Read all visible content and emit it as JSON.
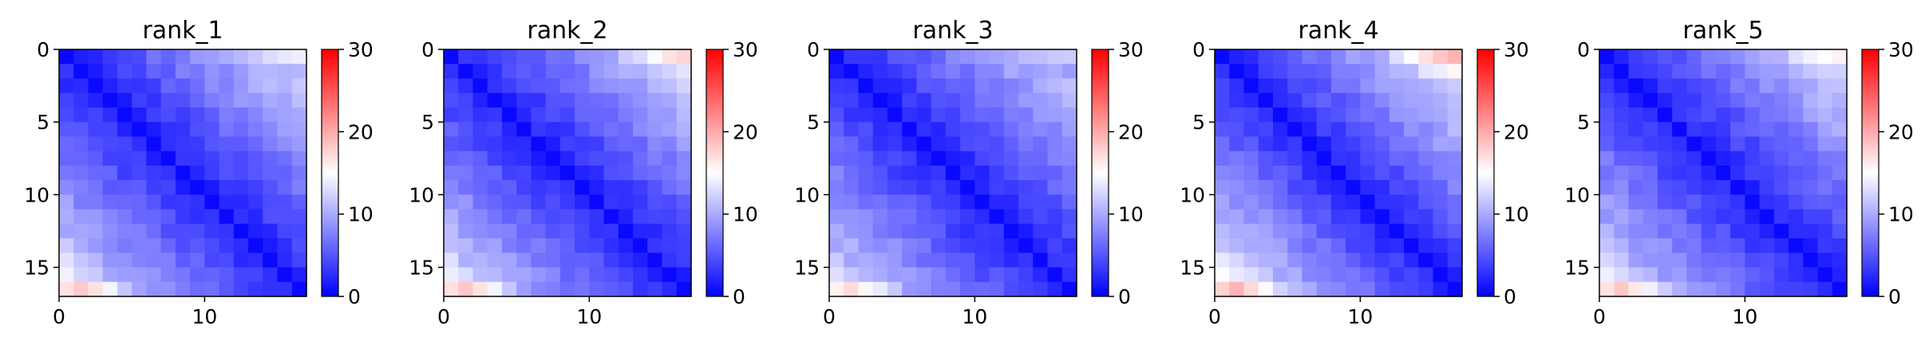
{
  "chart_data": [
    {
      "type": "heatmap",
      "title": "rank_1",
      "matrix_size": 17,
      "xticks": [
        0,
        10
      ],
      "yticks": [
        0,
        5,
        10,
        15
      ],
      "xlim": [
        0,
        17
      ],
      "ylim": [
        17,
        0
      ],
      "colorbar": {
        "ticks": [
          0,
          10,
          20,
          30
        ],
        "range": [
          0,
          30
        ],
        "colormap": "bwr"
      },
      "diag_min": 0.5,
      "near_gradient": 0.95,
      "edge_top_right": 14,
      "edge_bottom_left": 20
    },
    {
      "type": "heatmap",
      "title": "rank_2",
      "matrix_size": 17,
      "xticks": [
        0,
        10
      ],
      "yticks": [
        0,
        5,
        10,
        15
      ],
      "xlim": [
        0,
        17
      ],
      "ylim": [
        17,
        0
      ],
      "colorbar": {
        "ticks": [
          0,
          10,
          20,
          30
        ],
        "range": [
          0,
          30
        ],
        "colormap": "bwr"
      },
      "diag_min": 0.5,
      "near_gradient": 0.95,
      "edge_top_right": 18,
      "edge_bottom_left": 20
    },
    {
      "type": "heatmap",
      "title": "rank_3",
      "matrix_size": 17,
      "xticks": [
        0,
        10
      ],
      "yticks": [
        0,
        5,
        10,
        15
      ],
      "xlim": [
        0,
        17
      ],
      "ylim": [
        17,
        0
      ],
      "colorbar": {
        "ticks": [
          0,
          10,
          20,
          30
        ],
        "range": [
          0,
          30
        ],
        "colormap": "bwr"
      },
      "diag_min": 0.5,
      "near_gradient": 0.9,
      "edge_top_right": 12,
      "edge_bottom_left": 19
    },
    {
      "type": "heatmap",
      "title": "rank_4",
      "matrix_size": 17,
      "xticks": [
        0,
        10
      ],
      "yticks": [
        0,
        5,
        10,
        15
      ],
      "xlim": [
        0,
        17
      ],
      "ylim": [
        17,
        0
      ],
      "colorbar": {
        "ticks": [
          0,
          10,
          20,
          30
        ],
        "range": [
          0,
          30
        ],
        "colormap": "bwr"
      },
      "diag_min": 0.5,
      "near_gradient": 1.05,
      "edge_top_right": 20,
      "edge_bottom_left": 21
    },
    {
      "type": "heatmap",
      "title": "rank_5",
      "matrix_size": 17,
      "xticks": [
        0,
        10
      ],
      "yticks": [
        0,
        5,
        10,
        15
      ],
      "xlim": [
        0,
        17
      ],
      "ylim": [
        17,
        0
      ],
      "colorbar": {
        "ticks": [
          0,
          10,
          20,
          30
        ],
        "range": [
          0,
          30
        ],
        "colormap": "bwr"
      },
      "diag_min": 0.5,
      "near_gradient": 0.95,
      "edge_top_right": 16,
      "edge_bottom_left": 20
    }
  ]
}
